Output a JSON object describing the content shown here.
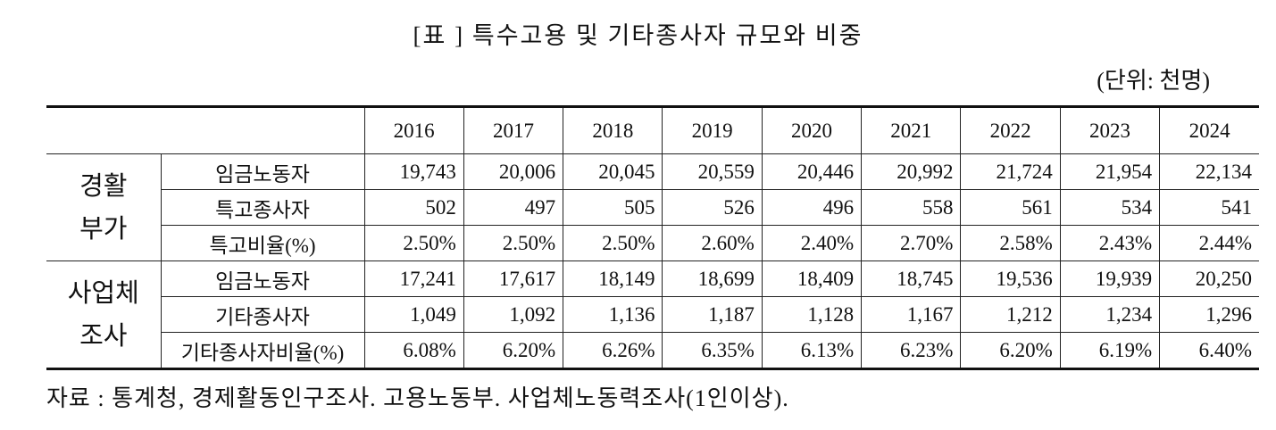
{
  "title": "[표 ] 특수고용 및 기타종사자 규모와 비중",
  "unit": "(단위: 천명)",
  "table": {
    "years": [
      "2016",
      "2017",
      "2018",
      "2019",
      "2020",
      "2021",
      "2022",
      "2023",
      "2024"
    ],
    "groups": [
      {
        "label": [
          "경활",
          "부가"
        ],
        "rows": [
          {
            "label": "임금노동자",
            "values": [
              "19,743",
              "20,006",
              "20,045",
              "20,559",
              "20,446",
              "20,992",
              "21,724",
              "21,954",
              "22,134"
            ]
          },
          {
            "label": "특고종사자",
            "values": [
              "502",
              "497",
              "505",
              "526",
              "496",
              "558",
              "561",
              "534",
              "541"
            ]
          },
          {
            "label": "특고비율(%)",
            "values": [
              "2.50%",
              "2.50%",
              "2.50%",
              "2.60%",
              "2.40%",
              "2.70%",
              "2.58%",
              "2.43%",
              "2.44%"
            ]
          }
        ]
      },
      {
        "label": [
          "사업체",
          "조사"
        ],
        "rows": [
          {
            "label": "임금노동자",
            "values": [
              "17,241",
              "17,617",
              "18,149",
              "18,699",
              "18,409",
              "18,745",
              "19,536",
              "19,939",
              "20,250"
            ]
          },
          {
            "label": "기타종사자",
            "values": [
              "1,049",
              "1,092",
              "1,136",
              "1,187",
              "1,128",
              "1,167",
              "1,212",
              "1,234",
              "1,296"
            ]
          },
          {
            "label": "기타종사자비율(%)",
            "values": [
              "6.08%",
              "6.20%",
              "6.26%",
              "6.35%",
              "6.13%",
              "6.23%",
              "6.20%",
              "6.19%",
              "6.40%"
            ]
          }
        ]
      }
    ]
  },
  "source": "자료 : 통계청, 경제활동인구조사. 고용노동부. 사업체노동력조사(1인이상)."
}
